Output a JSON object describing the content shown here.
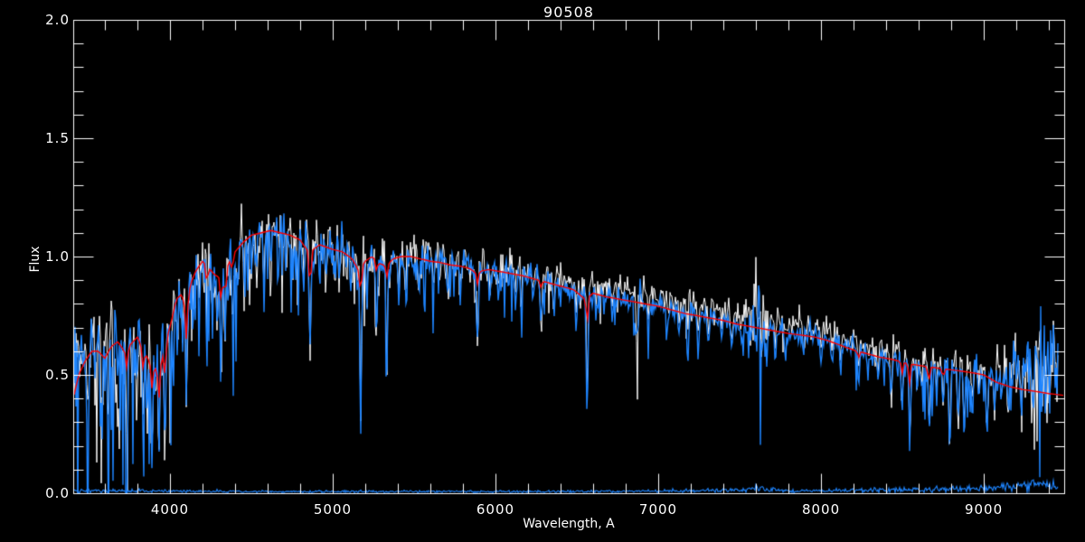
{
  "title": "90508",
  "axes": {
    "xlabel": "Wavelength, A",
    "ylabel": "Flux",
    "x_tick_values": [
      4000,
      5000,
      6000,
      7000,
      8000,
      9000
    ],
    "x_tick_labels": [
      "4000",
      "5000",
      "6000",
      "7000",
      "8000",
      "9000"
    ],
    "x_minor_step": 200,
    "y_tick_values": [
      0.0,
      0.5,
      1.0,
      1.5,
      2.0
    ],
    "y_tick_labels": [
      "0.0",
      "0.5",
      "1.0",
      "1.5",
      "2.0"
    ],
    "y_minor_step": 0.1
  },
  "colors": {
    "background": "#000000",
    "axis": "#ffffff",
    "observed": "#ffffff",
    "smoothed": "#1e85ff",
    "template": "#ff0000",
    "error": "#1e85ff"
  },
  "chart_data": {
    "type": "line",
    "title": "90508",
    "xlabel": "Wavelength, A",
    "ylabel": "Flux",
    "xlim": [
      3406,
      9494
    ],
    "ylim": [
      0.0,
      2.0
    ],
    "grid": false,
    "legend": "none",
    "series": [
      {
        "name": "observed-spectrum",
        "color": "#ffffff",
        "description": "noisy observed spectrum; tracks smoothed spectrum, sits 0.02-0.05 flux above it between 6000-9000 A"
      },
      {
        "name": "smoothed-spectrum",
        "color": "#1e85ff",
        "description": "blue noisy spectrum with dense narrow absorption dips; peak ~1.15 near 4600 A, declining to ~0.5 at 9000 A, noise bump near 9350 A"
      },
      {
        "name": "template-fit",
        "color": "#ff0000",
        "description": "smooth red template fit; values given by model.continuum_points minus model.template_lines dips"
      },
      {
        "name": "error-spectrum",
        "color": "#1e85ff",
        "description": "error/noise spectrum along flux~0.01, rising to ~0.03 beyond 9200 A; values in model.error_level"
      }
    ],
    "model": {
      "seed": 90508,
      "data_end_wavelength": 9460,
      "continuum_points": [
        [
          3406,
          0.4
        ],
        [
          3440,
          0.5
        ],
        [
          3480,
          0.56
        ],
        [
          3520,
          0.6
        ],
        [
          3560,
          0.6
        ],
        [
          3600,
          0.57
        ],
        [
          3640,
          0.62
        ],
        [
          3680,
          0.64
        ],
        [
          3720,
          0.6
        ],
        [
          3760,
          0.63
        ],
        [
          3800,
          0.66
        ],
        [
          3840,
          0.6
        ],
        [
          3880,
          0.55
        ],
        [
          3920,
          0.52
        ],
        [
          3950,
          0.57
        ],
        [
          3980,
          0.65
        ],
        [
          4010,
          0.73
        ],
        [
          4040,
          0.82
        ],
        [
          4070,
          0.84
        ],
        [
          4100,
          0.79
        ],
        [
          4130,
          0.89
        ],
        [
          4160,
          0.94
        ],
        [
          4200,
          0.98
        ],
        [
          4240,
          0.95
        ],
        [
          4280,
          0.92
        ],
        [
          4320,
          0.91
        ],
        [
          4360,
          0.97
        ],
        [
          4400,
          1.02
        ],
        [
          4450,
          1.06
        ],
        [
          4500,
          1.09
        ],
        [
          4560,
          1.1
        ],
        [
          4620,
          1.11
        ],
        [
          4680,
          1.1
        ],
        [
          4740,
          1.09
        ],
        [
          4800,
          1.07
        ],
        [
          4840,
          1.03
        ],
        [
          4880,
          1.03
        ],
        [
          4920,
          1.05
        ],
        [
          4960,
          1.04
        ],
        [
          5000,
          1.03
        ],
        [
          5060,
          1.02
        ],
        [
          5120,
          0.99
        ],
        [
          5160,
          0.94
        ],
        [
          5200,
          0.98
        ],
        [
          5240,
          1.0
        ],
        [
          5290,
          0.97
        ],
        [
          5330,
          0.96
        ],
        [
          5370,
          0.99
        ],
        [
          5420,
          1.0
        ],
        [
          5480,
          1.0
        ],
        [
          5540,
          0.99
        ],
        [
          5600,
          0.98
        ],
        [
          5660,
          0.975
        ],
        [
          5720,
          0.965
        ],
        [
          5780,
          0.96
        ],
        [
          5840,
          0.95
        ],
        [
          5880,
          0.93
        ],
        [
          5920,
          0.94
        ],
        [
          5960,
          0.945
        ],
        [
          6000,
          0.94
        ],
        [
          6080,
          0.93
        ],
        [
          6160,
          0.92
        ],
        [
          6240,
          0.905
        ],
        [
          6320,
          0.89
        ],
        [
          6400,
          0.875
        ],
        [
          6480,
          0.86
        ],
        [
          6550,
          0.82
        ],
        [
          6600,
          0.845
        ],
        [
          6680,
          0.83
        ],
        [
          6760,
          0.82
        ],
        [
          6840,
          0.81
        ],
        [
          6920,
          0.8
        ],
        [
          7000,
          0.79
        ],
        [
          7080,
          0.775
        ],
        [
          7160,
          0.76
        ],
        [
          7240,
          0.75
        ],
        [
          7320,
          0.74
        ],
        [
          7400,
          0.73
        ],
        [
          7480,
          0.715
        ],
        [
          7560,
          0.705
        ],
        [
          7640,
          0.695
        ],
        [
          7720,
          0.685
        ],
        [
          7800,
          0.675
        ],
        [
          7880,
          0.668
        ],
        [
          7960,
          0.66
        ],
        [
          8040,
          0.645
        ],
        [
          8120,
          0.625
        ],
        [
          8200,
          0.605
        ],
        [
          8280,
          0.59
        ],
        [
          8360,
          0.575
        ],
        [
          8440,
          0.565
        ],
        [
          8520,
          0.55
        ],
        [
          8600,
          0.54
        ],
        [
          8680,
          0.532
        ],
        [
          8760,
          0.525
        ],
        [
          8840,
          0.518
        ],
        [
          8920,
          0.51
        ],
        [
          9000,
          0.5
        ],
        [
          9080,
          0.468
        ],
        [
          9160,
          0.45
        ],
        [
          9240,
          0.438
        ],
        [
          9320,
          0.43
        ],
        [
          9400,
          0.421
        ],
        [
          9460,
          0.416
        ],
        [
          9494,
          0.413
        ]
      ],
      "template_lines": [
        [
          3735,
          0.08,
          6
        ],
        [
          3835,
          0.08,
          6
        ],
        [
          3890,
          0.1,
          6
        ],
        [
          3933,
          0.14,
          6
        ],
        [
          3970,
          0.12,
          6
        ],
        [
          4101,
          0.14,
          6
        ],
        [
          4227,
          0.08,
          5
        ],
        [
          4315,
          0.1,
          6
        ],
        [
          4340,
          0.1,
          6
        ],
        [
          4383,
          0.06,
          5
        ],
        [
          4861,
          0.16,
          6
        ],
        [
          5172,
          0.1,
          6
        ],
        [
          5270,
          0.05,
          5
        ],
        [
          5332,
          0.05,
          5
        ],
        [
          5890,
          0.05,
          5
        ],
        [
          6280,
          0.03,
          5
        ],
        [
          6563,
          0.12,
          5
        ],
        [
          8230,
          0.03,
          5
        ],
        [
          8498,
          0.05,
          5
        ],
        [
          8542,
          0.09,
          5
        ],
        [
          8662,
          0.07,
          5
        ],
        [
          8750,
          0.04,
          5
        ]
      ],
      "absorption_lines": [
        [
          3496,
          0.42,
          5
        ],
        [
          3540,
          0.2,
          5
        ],
        [
          3581,
          0.35,
          5
        ],
        [
          3620,
          0.25,
          5
        ],
        [
          3655,
          0.2,
          5
        ],
        [
          3680,
          0.28,
          5
        ],
        [
          3710,
          0.2,
          5
        ],
        [
          3735,
          0.32,
          5
        ],
        [
          3770,
          0.22,
          5
        ],
        [
          3798,
          0.28,
          5
        ],
        [
          3835,
          0.35,
          5
        ],
        [
          3860,
          0.2,
          5
        ],
        [
          3890,
          0.38,
          5
        ],
        [
          3933,
          0.42,
          5
        ],
        [
          3970,
          0.38,
          5
        ],
        [
          4005,
          0.2,
          5
        ],
        [
          4045,
          0.22,
          5
        ],
        [
          4078,
          0.18,
          5
        ],
        [
          4101,
          0.4,
          5
        ],
        [
          4144,
          0.2,
          5
        ],
        [
          4180,
          0.15,
          5
        ],
        [
          4227,
          0.32,
          5
        ],
        [
          4260,
          0.18,
          5
        ],
        [
          4290,
          0.25,
          5
        ],
        [
          4315,
          0.35,
          5
        ],
        [
          4340,
          0.3,
          5
        ],
        [
          4383,
          0.25,
          5
        ],
        [
          4415,
          0.15,
          5
        ],
        [
          4455,
          0.18,
          5
        ],
        [
          4500,
          0.12,
          5
        ],
        [
          4531,
          0.15,
          5
        ],
        [
          4580,
          0.18,
          5
        ],
        [
          4620,
          0.12,
          5
        ],
        [
          4668,
          0.16,
          5
        ],
        [
          4710,
          0.12,
          5
        ],
        [
          4755,
          0.12,
          5
        ],
        [
          4785,
          0.14,
          5
        ],
        [
          4821,
          0.12,
          5
        ],
        [
          4861,
          0.48,
          5
        ],
        [
          4920,
          0.16,
          5
        ],
        [
          4957,
          0.13,
          5
        ],
        [
          5015,
          0.14,
          5
        ],
        [
          5040,
          0.12,
          5
        ],
        [
          5110,
          0.12,
          5
        ],
        [
          5172,
          0.68,
          5
        ],
        [
          5210,
          0.18,
          5
        ],
        [
          5270,
          0.33,
          5
        ],
        [
          5332,
          0.45,
          5
        ],
        [
          5406,
          0.2,
          5
        ],
        [
          5445,
          0.12,
          5
        ],
        [
          5530,
          0.14,
          5
        ],
        [
          5620,
          0.1,
          5
        ],
        [
          5710,
          0.12,
          5
        ],
        [
          5782,
          0.1,
          5
        ],
        [
          5890,
          0.35,
          5
        ],
        [
          5970,
          0.12,
          5
        ],
        [
          6020,
          0.1,
          5
        ],
        [
          6122,
          0.12,
          5
        ],
        [
          6160,
          0.14,
          5
        ],
        [
          6230,
          0.1,
          5
        ],
        [
          6280,
          0.2,
          5
        ],
        [
          6360,
          0.12,
          5
        ],
        [
          6495,
          0.15,
          5
        ],
        [
          6563,
          0.52,
          5
        ],
        [
          6620,
          0.1,
          5
        ],
        [
          6717,
          0.1,
          5
        ],
        [
          6870,
          0.22,
          5
        ],
        [
          6940,
          0.12,
          5
        ],
        [
          7060,
          0.1,
          5
        ],
        [
          7130,
          0.1,
          5
        ],
        [
          7180,
          0.2,
          5
        ],
        [
          7245,
          0.18,
          5
        ],
        [
          7310,
          0.12,
          5
        ],
        [
          7390,
          0.1,
          5
        ],
        [
          7450,
          0.1,
          5
        ],
        [
          7510,
          0.08,
          5
        ],
        [
          7665,
          0.12,
          5
        ],
        [
          7720,
          0.14,
          5
        ],
        [
          7780,
          0.08,
          5
        ],
        [
          7890,
          0.1,
          5
        ],
        [
          8000,
          0.1,
          5
        ],
        [
          8070,
          0.08,
          5
        ],
        [
          8120,
          0.12,
          5
        ],
        [
          8230,
          0.16,
          5
        ],
        [
          8290,
          0.1,
          5
        ],
        [
          8350,
          0.14,
          5
        ],
        [
          8430,
          0.16,
          5
        ],
        [
          8498,
          0.22,
          5
        ],
        [
          8545,
          0.34,
          5
        ],
        [
          8590,
          0.12,
          5
        ],
        [
          8620,
          0.16,
          5
        ],
        [
          8665,
          0.28,
          5
        ],
        [
          8710,
          0.12,
          5
        ],
        [
          8750,
          0.18,
          5
        ],
        [
          8790,
          0.36,
          5
        ],
        [
          8843,
          0.22,
          5
        ],
        [
          8880,
          0.26,
          5
        ],
        [
          8930,
          0.16,
          5
        ],
        [
          8970,
          0.12,
          5
        ],
        [
          9020,
          0.26,
          5
        ],
        [
          9065,
          0.2,
          5
        ],
        [
          9110,
          0.14,
          5
        ],
        [
          9150,
          0.16,
          5
        ],
        [
          9230,
          0.16,
          5
        ],
        [
          9310,
          0.12,
          5
        ],
        [
          9480,
          0.3,
          5
        ]
      ],
      "noise_profile": [
        [
          3406,
          0.08
        ],
        [
          3700,
          0.075
        ],
        [
          4000,
          0.055
        ],
        [
          4400,
          0.05
        ],
        [
          4800,
          0.045
        ],
        [
          5200,
          0.04
        ],
        [
          5600,
          0.032
        ],
        [
          6000,
          0.028
        ],
        [
          6400,
          0.025
        ],
        [
          6800,
          0.022
        ],
        [
          7200,
          0.022
        ],
        [
          7600,
          0.022
        ],
        [
          8000,
          0.022
        ],
        [
          8400,
          0.025
        ],
        [
          8800,
          0.028
        ],
        [
          9000,
          0.032
        ],
        [
          9150,
          0.045
        ],
        [
          9250,
          0.055
        ],
        [
          9400,
          0.06
        ],
        [
          9460,
          0.05
        ]
      ],
      "noise_bursts": [
        [
          7615,
          28,
          4.5
        ],
        [
          7185,
          25,
          1.2
        ],
        [
          6875,
          18,
          1.0
        ],
        [
          9360,
          60,
          1.2
        ]
      ],
      "white_offset": [
        [
          3406,
          0.0
        ],
        [
          5200,
          0.005
        ],
        [
          5600,
          0.012
        ],
        [
          6000,
          0.02
        ],
        [
          6300,
          0.03
        ],
        [
          6600,
          0.042
        ],
        [
          7000,
          0.048
        ],
        [
          7400,
          0.05
        ],
        [
          7800,
          0.045
        ],
        [
          8200,
          0.04
        ],
        [
          8600,
          0.03
        ],
        [
          9000,
          0.022
        ],
        [
          9460,
          0.02
        ]
      ],
      "blue_excess": [
        [
          3406,
          0.09
        ],
        [
          3500,
          0.07
        ],
        [
          3600,
          0.055
        ],
        [
          3700,
          0.045
        ],
        [
          3800,
          0.035
        ],
        [
          3900,
          0.02
        ],
        [
          4000,
          0.01
        ],
        [
          4100,
          0.0
        ],
        [
          8900,
          0.0
        ],
        [
          9000,
          0.01
        ],
        [
          9100,
          0.04
        ],
        [
          9200,
          0.08
        ],
        [
          9300,
          0.11
        ],
        [
          9370,
          0.13
        ],
        [
          9420,
          0.11
        ],
        [
          9460,
          0.1
        ]
      ],
      "error_level": [
        [
          3406,
          0.012
        ],
        [
          3700,
          0.01
        ],
        [
          4200,
          0.008
        ],
        [
          5000,
          0.007
        ],
        [
          6000,
          0.007
        ],
        [
          6900,
          0.008
        ],
        [
          7200,
          0.01
        ],
        [
          7615,
          0.016
        ],
        [
          7800,
          0.01
        ],
        [
          8100,
          0.012
        ],
        [
          8400,
          0.014
        ],
        [
          8700,
          0.016
        ],
        [
          9000,
          0.02
        ],
        [
          9200,
          0.028
        ],
        [
          9330,
          0.032
        ],
        [
          9420,
          0.026
        ],
        [
          9460,
          0.024
        ]
      ]
    }
  }
}
